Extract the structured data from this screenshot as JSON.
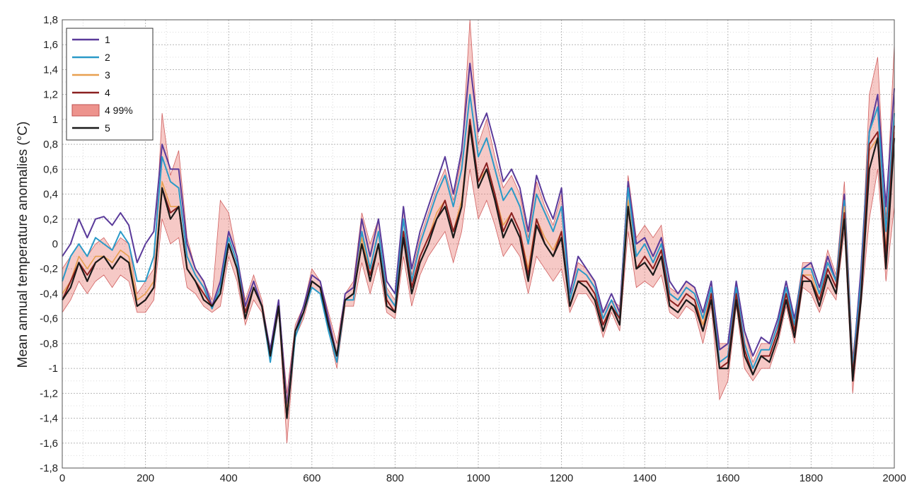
{
  "chart_data": {
    "type": "line",
    "title": "",
    "xlabel": "",
    "ylabel": "Mean annual temperature anomalies (°C)",
    "xlim": [
      0,
      2000
    ],
    "ylim": [
      -1.8,
      1.8
    ],
    "grid": true,
    "legend_position": "top-left",
    "x_ticks": [
      0,
      200,
      400,
      600,
      800,
      1000,
      1200,
      1400,
      1600,
      1800,
      2000
    ],
    "x_tick_labels": [
      "0",
      "200",
      "400",
      "600",
      "800",
      "1000",
      "1200",
      "1400",
      "1600",
      "1800",
      "2000"
    ],
    "y_ticks": [
      -1.8,
      -1.6,
      -1.4,
      -1.2,
      -1.0,
      -0.8,
      -0.6,
      -0.4,
      -0.2,
      0,
      0.2,
      0.4,
      0.6,
      0.8,
      1.0,
      1.2,
      1.4,
      1.6,
      1.8
    ],
    "y_tick_labels": [
      "-1,8",
      "-1,6",
      "-1,4",
      "-1,2",
      "-1",
      "-0,8",
      "-0,6",
      "-0,4",
      "-0,2",
      "0",
      "0,2",
      "0,4",
      "0,6",
      "0,8",
      "1",
      "1,2",
      "1,4",
      "1,6",
      "1,8"
    ],
    "x": [
      0,
      20,
      40,
      60,
      80,
      100,
      120,
      140,
      160,
      180,
      200,
      220,
      240,
      260,
      280,
      300,
      320,
      340,
      360,
      380,
      400,
      420,
      440,
      460,
      480,
      500,
      520,
      540,
      560,
      580,
      600,
      620,
      640,
      660,
      680,
      700,
      720,
      740,
      760,
      780,
      800,
      820,
      840,
      860,
      880,
      900,
      920,
      940,
      960,
      980,
      1000,
      1020,
      1040,
      1060,
      1080,
      1100,
      1120,
      1140,
      1160,
      1180,
      1200,
      1220,
      1240,
      1260,
      1280,
      1300,
      1320,
      1340,
      1360,
      1380,
      1400,
      1420,
      1440,
      1460,
      1480,
      1500,
      1520,
      1540,
      1560,
      1580,
      1600,
      1620,
      1640,
      1660,
      1680,
      1700,
      1720,
      1740,
      1760,
      1780,
      1800,
      1820,
      1840,
      1860,
      1880,
      1900,
      1920,
      1940,
      1960,
      1980,
      2000
    ],
    "series": [
      {
        "name": "1",
        "color": "#5a3a9a",
        "values": [
          -0.1,
          0.0,
          0.2,
          0.05,
          0.2,
          0.22,
          0.15,
          0.25,
          0.15,
          -0.15,
          0.0,
          0.1,
          0.8,
          0.6,
          0.6,
          0.0,
          -0.2,
          -0.3,
          -0.5,
          -0.3,
          0.1,
          -0.1,
          -0.5,
          -0.3,
          -0.5,
          -0.85,
          -0.45,
          -1.3,
          -0.7,
          -0.5,
          -0.25,
          -0.3,
          -0.6,
          -0.9,
          -0.4,
          -0.35,
          0.2,
          -0.1,
          0.2,
          -0.3,
          -0.4,
          0.3,
          -0.2,
          0.1,
          0.3,
          0.5,
          0.7,
          0.4,
          0.75,
          1.45,
          0.9,
          1.05,
          0.8,
          0.5,
          0.6,
          0.45,
          0.1,
          0.55,
          0.35,
          0.2,
          0.45,
          -0.4,
          -0.1,
          -0.2,
          -0.3,
          -0.55,
          -0.4,
          -0.55,
          0.5,
          0.0,
          0.05,
          -0.1,
          0.05,
          -0.3,
          -0.4,
          -0.3,
          -0.35,
          -0.55,
          -0.3,
          -0.85,
          -0.8,
          -0.3,
          -0.7,
          -0.9,
          -0.75,
          -0.8,
          -0.6,
          -0.3,
          -0.6,
          -0.2,
          -0.15,
          -0.35,
          -0.1,
          -0.3,
          0.4,
          -1.0,
          -0.2,
          0.9,
          1.2,
          0.3,
          1.25
        ]
      },
      {
        "name": "2",
        "color": "#2a9ac8",
        "values": [
          -0.3,
          -0.1,
          0.0,
          -0.1,
          0.05,
          0.0,
          -0.05,
          0.1,
          0.0,
          -0.3,
          -0.3,
          -0.1,
          0.7,
          0.5,
          0.45,
          -0.1,
          -0.25,
          -0.35,
          -0.52,
          -0.35,
          0.05,
          -0.15,
          -0.55,
          -0.35,
          -0.5,
          -0.95,
          -0.5,
          -1.4,
          -0.75,
          -0.55,
          -0.35,
          -0.4,
          -0.7,
          -0.95,
          -0.45,
          -0.45,
          0.1,
          -0.2,
          0.1,
          -0.4,
          -0.5,
          0.2,
          -0.3,
          0.0,
          0.2,
          0.4,
          0.55,
          0.3,
          0.6,
          1.2,
          0.7,
          0.85,
          0.6,
          0.35,
          0.45,
          0.3,
          0.0,
          0.4,
          0.25,
          0.1,
          0.3,
          -0.45,
          -0.2,
          -0.25,
          -0.35,
          -0.6,
          -0.45,
          -0.6,
          0.45,
          -0.1,
          0.0,
          -0.15,
          0.0,
          -0.4,
          -0.45,
          -0.35,
          -0.4,
          -0.6,
          -0.35,
          -0.95,
          -0.9,
          -0.35,
          -0.8,
          -1.0,
          -0.85,
          -0.85,
          -0.65,
          -0.35,
          -0.65,
          -0.2,
          -0.2,
          -0.4,
          -0.15,
          -0.3,
          0.35,
          -1.0,
          -0.3,
          0.9,
          1.1,
          0.1,
          1.05
        ]
      },
      {
        "name": "3",
        "color": "#e8a050",
        "values": [
          -0.4,
          -0.3,
          -0.1,
          -0.2,
          -0.1,
          -0.1,
          -0.15,
          -0.05,
          -0.1,
          -0.45,
          -0.4,
          -0.3,
          0.5,
          0.3,
          0.3,
          -0.2,
          -0.3,
          -0.4,
          -0.5,
          -0.4,
          0.0,
          -0.2,
          -0.55,
          -0.35,
          -0.5,
          -0.9,
          -0.5,
          -1.35,
          -0.7,
          -0.55,
          -0.3,
          -0.35,
          -0.65,
          -0.9,
          -0.45,
          -0.4,
          0.05,
          -0.25,
          0.0,
          -0.45,
          -0.55,
          0.1,
          -0.35,
          -0.1,
          0.05,
          0.25,
          0.35,
          0.1,
          0.35,
          0.95,
          0.5,
          0.6,
          0.4,
          0.15,
          0.25,
          0.1,
          -0.2,
          0.2,
          0.05,
          -0.05,
          0.1,
          -0.5,
          -0.3,
          -0.3,
          -0.4,
          -0.65,
          -0.5,
          -0.6,
          0.35,
          -0.2,
          -0.1,
          -0.2,
          -0.05,
          -0.45,
          -0.5,
          -0.4,
          -0.45,
          -0.65,
          -0.4,
          -1.0,
          -0.95,
          -0.4,
          -0.85,
          -1.05,
          -0.9,
          -0.9,
          -0.7,
          -0.4,
          -0.7,
          -0.25,
          -0.25,
          -0.45,
          -0.2,
          -0.35,
          0.3,
          -1.05,
          -0.4,
          0.75,
          0.85,
          -0.05,
          0.9
        ]
      },
      {
        "name": "4",
        "color": "#8a2020",
        "values": [
          -0.45,
          -0.3,
          -0.15,
          -0.25,
          -0.15,
          -0.1,
          -0.2,
          -0.1,
          -0.15,
          -0.5,
          -0.45,
          -0.35,
          0.45,
          0.25,
          0.3,
          -0.2,
          -0.3,
          -0.4,
          -0.5,
          -0.4,
          0.0,
          -0.2,
          -0.55,
          -0.35,
          -0.5,
          -0.9,
          -0.5,
          -1.4,
          -0.7,
          -0.55,
          -0.3,
          -0.35,
          -0.65,
          -0.9,
          -0.45,
          -0.4,
          0.0,
          -0.25,
          0.0,
          -0.45,
          -0.55,
          0.1,
          -0.35,
          -0.1,
          0.05,
          0.2,
          0.35,
          0.1,
          0.3,
          1.0,
          0.5,
          0.65,
          0.4,
          0.1,
          0.25,
          0.1,
          -0.25,
          0.2,
          0.0,
          -0.1,
          0.1,
          -0.5,
          -0.3,
          -0.3,
          -0.4,
          -0.65,
          -0.5,
          -0.6,
          0.3,
          -0.2,
          -0.1,
          -0.2,
          -0.05,
          -0.45,
          -0.5,
          -0.4,
          -0.45,
          -0.7,
          -0.4,
          -1.0,
          -0.95,
          -0.4,
          -0.85,
          -1.05,
          -0.9,
          -0.9,
          -0.7,
          -0.4,
          -0.7,
          -0.25,
          -0.3,
          -0.45,
          -0.2,
          -0.35,
          0.25,
          -1.05,
          -0.4,
          0.8,
          0.9,
          -0.1,
          0.95
        ]
      },
      {
        "name": "5",
        "color": "#1a1a1a",
        "values": [
          -0.45,
          -0.35,
          -0.15,
          -0.3,
          -0.15,
          -0.1,
          -0.2,
          -0.1,
          -0.15,
          -0.5,
          -0.45,
          -0.35,
          0.45,
          0.2,
          0.3,
          -0.2,
          -0.3,
          -0.45,
          -0.5,
          -0.4,
          0.0,
          -0.2,
          -0.6,
          -0.35,
          -0.5,
          -0.9,
          -0.5,
          -1.4,
          -0.7,
          -0.55,
          -0.3,
          -0.35,
          -0.65,
          -0.9,
          -0.45,
          -0.4,
          0.0,
          -0.3,
          0.0,
          -0.5,
          -0.55,
          0.05,
          -0.4,
          -0.15,
          0.0,
          0.2,
          0.3,
          0.05,
          0.3,
          0.95,
          0.45,
          0.6,
          0.35,
          0.05,
          0.2,
          0.05,
          -0.3,
          0.15,
          0.0,
          -0.1,
          0.05,
          -0.5,
          -0.3,
          -0.35,
          -0.45,
          -0.7,
          -0.5,
          -0.65,
          0.3,
          -0.2,
          -0.15,
          -0.25,
          -0.1,
          -0.5,
          -0.55,
          -0.45,
          -0.5,
          -0.7,
          -0.45,
          -1.0,
          -1.0,
          -0.45,
          -0.9,
          -1.05,
          -0.9,
          -0.95,
          -0.75,
          -0.45,
          -0.75,
          -0.3,
          -0.3,
          -0.5,
          -0.25,
          -0.4,
          0.2,
          -1.1,
          -0.45,
          0.6,
          0.85,
          -0.2,
          0.85
        ]
      }
    ],
    "band": {
      "name": "4 99%",
      "color": "#e87870",
      "lower": [
        -0.55,
        -0.45,
        -0.3,
        -0.4,
        -0.3,
        -0.25,
        -0.35,
        -0.25,
        -0.3,
        -0.55,
        -0.55,
        -0.45,
        0.2,
        0.0,
        0.05,
        -0.35,
        -0.4,
        -0.5,
        -0.55,
        -0.5,
        -0.1,
        -0.3,
        -0.65,
        -0.45,
        -0.55,
        -0.95,
        -0.55,
        -1.6,
        -0.75,
        -0.6,
        -0.35,
        -0.4,
        -0.7,
        -1.0,
        -0.5,
        -0.5,
        -0.15,
        -0.4,
        -0.15,
        -0.55,
        -0.6,
        -0.1,
        -0.5,
        -0.25,
        -0.1,
        0.0,
        0.1,
        -0.15,
        0.1,
        0.6,
        0.2,
        0.35,
        0.15,
        -0.1,
        0.0,
        -0.1,
        -0.4,
        -0.1,
        -0.2,
        -0.3,
        -0.2,
        -0.55,
        -0.4,
        -0.4,
        -0.5,
        -0.75,
        -0.55,
        -0.7,
        0.1,
        -0.35,
        -0.3,
        -0.35,
        -0.25,
        -0.55,
        -0.6,
        -0.5,
        -0.55,
        -0.8,
        -0.5,
        -1.25,
        -1.1,
        -0.5,
        -1.0,
        -1.1,
        -1.0,
        -1.0,
        -0.8,
        -0.5,
        -0.8,
        -0.35,
        -0.4,
        -0.55,
        -0.35,
        -0.45,
        0.1,
        -1.2,
        -0.5,
        0.2,
        0.6,
        -0.3,
        0.3
      ],
      "upper": [
        -0.2,
        -0.1,
        0.0,
        -0.1,
        0.0,
        0.05,
        -0.05,
        0.05,
        0.0,
        -0.4,
        -0.3,
        -0.2,
        1.05,
        0.55,
        0.75,
        0.05,
        -0.2,
        -0.3,
        -0.45,
        0.35,
        0.25,
        -0.1,
        -0.45,
        -0.25,
        -0.45,
        -0.85,
        -0.45,
        -1.2,
        -0.65,
        -0.5,
        -0.2,
        -0.3,
        -0.55,
        -0.8,
        -0.4,
        -0.3,
        0.25,
        0.0,
        0.2,
        -0.35,
        -0.45,
        0.3,
        -0.25,
        0.05,
        0.25,
        0.45,
        0.6,
        0.35,
        0.7,
        1.8,
        0.8,
        1.0,
        0.7,
        0.45,
        0.55,
        0.4,
        0.05,
        0.5,
        0.3,
        0.15,
        0.4,
        -0.4,
        -0.15,
        -0.2,
        -0.3,
        -0.55,
        -0.45,
        -0.5,
        0.55,
        0.05,
        0.15,
        0.05,
        0.15,
        -0.35,
        -0.4,
        -0.3,
        -0.35,
        -0.55,
        -0.3,
        -0.8,
        -0.8,
        -0.3,
        -0.7,
        -0.95,
        -0.8,
        -0.8,
        -0.6,
        -0.3,
        -0.6,
        -0.15,
        -0.15,
        -0.35,
        -0.05,
        -0.25,
        0.5,
        -0.9,
        -0.3,
        1.2,
        1.5,
        0.2,
        1.6
      ]
    },
    "legend": [
      {
        "label": "1",
        "kind": "line",
        "color": "#5a3a9a"
      },
      {
        "label": "2",
        "kind": "line",
        "color": "#2a9ac8"
      },
      {
        "label": "3",
        "kind": "line",
        "color": "#e8a050"
      },
      {
        "label": "4",
        "kind": "line",
        "color": "#8a2020"
      },
      {
        "label": "4 99%",
        "kind": "band",
        "color": "#e87870"
      },
      {
        "label": "5",
        "kind": "line",
        "color": "#1a1a1a"
      }
    ]
  }
}
